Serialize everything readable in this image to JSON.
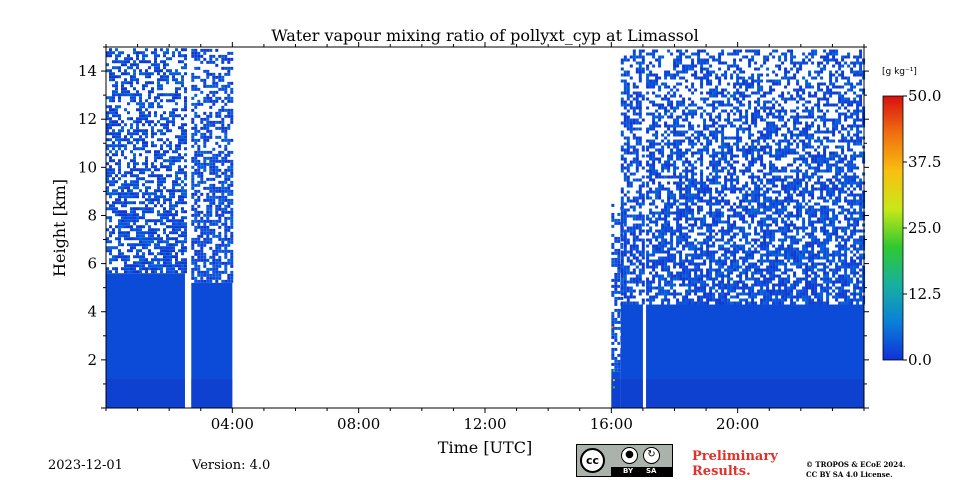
{
  "chart_data": {
    "type": "heatmap",
    "title": "Water vapour mixing ratio of pollyxt_cyp at Limassol",
    "xlabel": "Time [UTC]",
    "ylabel": "Height [km]",
    "xlim_hours": [
      0,
      24
    ],
    "ylim_km": [
      0,
      15
    ],
    "x_ticks": [
      {
        "hour": 4,
        "label": "04:00"
      },
      {
        "hour": 8,
        "label": "08:00"
      },
      {
        "hour": 12,
        "label": "12:00"
      },
      {
        "hour": 16,
        "label": "16:00"
      },
      {
        "hour": 20,
        "label": "20:00"
      }
    ],
    "y_ticks": [
      {
        "km": 2,
        "label": "2"
      },
      {
        "km": 4,
        "label": "4"
      },
      {
        "km": 6,
        "label": "6"
      },
      {
        "km": 8,
        "label": "8"
      },
      {
        "km": 10,
        "label": "10"
      },
      {
        "km": 12,
        "label": "12"
      },
      {
        "km": 14,
        "label": "14"
      }
    ],
    "colorbar": {
      "unit_label": "[g kg⁻¹]",
      "range": [
        0.0,
        50.0
      ],
      "ticks": [
        {
          "value": 50.0,
          "label": "50.0"
        },
        {
          "value": 37.5,
          "label": "37.5"
        },
        {
          "value": 25.0,
          "label": "25.0"
        },
        {
          "value": 12.5,
          "label": "12.5"
        },
        {
          "value": 0.0,
          "label": "0.0"
        }
      ],
      "colors": [
        "#1030d8",
        "#0a80d8",
        "#18b0a0",
        "#30c830",
        "#c8e818",
        "#f8c010",
        "#f07010",
        "#d81010"
      ]
    },
    "data_segments": [
      {
        "start_hour": 0.0,
        "end_hour": 2.5,
        "solid_top_km": 5.6,
        "sparse_top_km": 15.0,
        "value_range": [
          0,
          3
        ]
      },
      {
        "start_hour": 2.7,
        "end_hour": 4.0,
        "solid_top_km": 5.2,
        "sparse_top_km": 15.0,
        "value_range": [
          0,
          3
        ]
      },
      {
        "start_hour": 16.0,
        "end_hour": 16.3,
        "solid_top_km": 1.5,
        "sparse_top_km": 8.5,
        "value_range": [
          0,
          3
        ]
      },
      {
        "start_hour": 16.3,
        "end_hour": 17.0,
        "solid_top_km": 4.3,
        "sparse_top_km": 15.0,
        "value_range": [
          0,
          3
        ]
      },
      {
        "start_hour": 17.1,
        "end_hour": 24.0,
        "solid_top_km": 4.3,
        "sparse_top_km": 15.0,
        "value_range": [
          0,
          3
        ]
      }
    ]
  },
  "footer": {
    "date": "2023-12-01",
    "version": "Version: 4.0",
    "license_icon": "cc-by-sa-icon",
    "license_by": "BY",
    "license_sa": "SA",
    "preliminary": "Preliminary Results.",
    "copyright_line1": "© TROPOS & ECoE 2024.",
    "copyright_line2": "CC BY SA 4.0 License."
  }
}
